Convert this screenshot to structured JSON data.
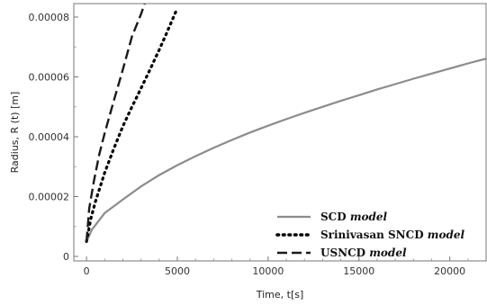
{
  "chart_data": {
    "type": "line",
    "xlabel": "Time, t[s]",
    "ylabel": "Radius, R (t) [m]",
    "xlim": [
      -700,
      22000
    ],
    "ylim": [
      -1.5e-06,
      8.45e-05
    ],
    "xticks": [
      0,
      5000,
      10000,
      15000,
      20000
    ],
    "xtick_labels": [
      "0",
      "5000",
      "10000",
      "15000",
      "20000"
    ],
    "yticks": [
      0,
      2e-05,
      4e-05,
      6e-05,
      8e-05
    ],
    "ytick_labels": [
      "0",
      "0.00002",
      "0.00004",
      "0.00006",
      "0.00008"
    ],
    "grid": false,
    "legend_position": "bottom-right",
    "series": [
      {
        "name": "SCD",
        "name_suffix": "model",
        "style": "solid",
        "color": "#8c8c8c",
        "x": [
          0,
          300,
          1000,
          2000,
          3000,
          4000,
          5000,
          6000,
          7000,
          8000,
          9000,
          10000,
          11000,
          12000,
          13000,
          14000,
          15000,
          16000,
          17000,
          18000,
          19000,
          20000,
          21000,
          22000
        ],
        "y": [
          5e-06,
          9e-06,
          1.45e-05,
          1.9e-05,
          2.34e-05,
          2.72e-05,
          3.05e-05,
          3.35e-05,
          3.63e-05,
          3.89e-05,
          4.14e-05,
          4.37e-05,
          4.59e-05,
          4.8e-05,
          5e-05,
          5.2e-05,
          5.39e-05,
          5.58e-05,
          5.76e-05,
          5.94e-05,
          6.11e-05,
          6.28e-05,
          6.45e-05,
          6.61e-05
        ]
      },
      {
        "name": "Srinivasan SNCD",
        "name_suffix": "model",
        "style": "dotted",
        "color": "#000000",
        "x": [
          0,
          250,
          500,
          1000,
          1500,
          2000,
          2500,
          3000,
          3500,
          4000,
          4400,
          5000
        ],
        "y": [
          5e-06,
          1.3e-05,
          1.85e-05,
          2.8e-05,
          3.6e-05,
          4.35e-05,
          5e-05,
          5.62e-05,
          6.25e-05,
          6.9e-05,
          7.45e-05,
          8.3e-05
        ]
      },
      {
        "name": "USNCD",
        "name_suffix": "model",
        "style": "dashed",
        "color": "#1a1a1a",
        "x": [
          0,
          150,
          400,
          700,
          1000,
          1500,
          2000,
          2500,
          3000,
          3200
        ],
        "y": [
          5e-06,
          1.6e-05,
          2.5e-05,
          3.4e-05,
          4.12e-05,
          5.2e-05,
          6.25e-05,
          7.35e-05,
          8.1e-05,
          8.45e-05
        ]
      }
    ]
  }
}
